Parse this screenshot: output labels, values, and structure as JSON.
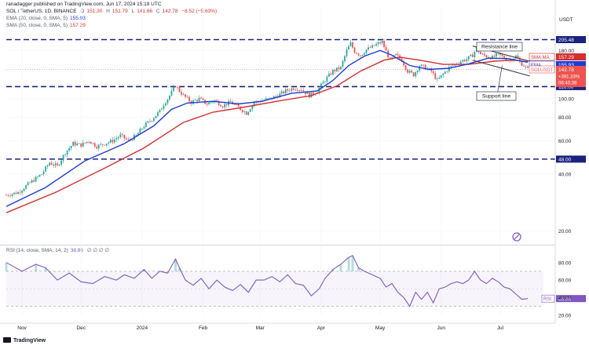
{
  "author": "ranadagger published on TradingView.com, Jun 17, 2024 15:19 UTC",
  "header": {
    "pair": "SOL / TetherUS, 1D, BINANCE",
    "ohlc": [
      {
        "label": "O",
        "value": "151.30"
      },
      {
        "label": "H",
        "value": "151.79"
      },
      {
        "label": "L",
        "value": "141.66"
      },
      {
        "label": "C",
        "value": "142.78"
      }
    ],
    "change": "−8.52 (−5.63%)",
    "ema_line": "EMA (20, close, 0, SMA, 5)",
    "ema_value": "155.93",
    "sma_line": "SMA (50, close, 0, SMA, 5)",
    "sma_value": "157.29",
    "rsi_line": "RSI (14, close, SMA, 14, 2)",
    "rsi_value": "38.86",
    "rsi_na": "∅ ∅ ∅ ∅"
  },
  "currency": "USDT",
  "footer": "TradingView",
  "colors": {
    "up": "#26a69a",
    "down": "#ef5350",
    "ema": "#1e3ad8",
    "sma": "#d32f2f",
    "rsi": "#7e57c2",
    "level": "#1a237e",
    "channel": "#333a45"
  },
  "chart_data": [
    {
      "type": "candlestick",
      "title": "SOL / TetherUS, 1D, BINANCE",
      "y_scale": "log",
      "ylim": [
        19,
        236
      ],
      "y_ticks": [
        "20.00",
        "40.00",
        "60.00",
        "80.00",
        "100.00",
        "120.00",
        "140.00",
        "180.00"
      ],
      "x_ticks": [
        "Nov",
        "Dec",
        "2024",
        "Feb",
        "Mar",
        "Apr",
        "May",
        "Jun",
        "Jul"
      ],
      "series": [
        {
          "name": "EMA",
          "value": "155.93"
        },
        {
          "name": "SMA:MA",
          "value": "157.29"
        },
        {
          "name": "SOLUSDT",
          "value": "142.78",
          "extra": [
            "+391.33%",
            "08:40:38"
          ]
        }
      ],
      "price_path": [
        [
          0,
          31
        ],
        [
          6,
          32
        ],
        [
          12,
          36
        ],
        [
          18,
          40
        ],
        [
          22,
          46
        ],
        [
          26,
          44
        ],
        [
          30,
          52
        ],
        [
          34,
          58
        ],
        [
          38,
          57
        ],
        [
          42,
          60
        ],
        [
          46,
          56
        ],
        [
          50,
          58
        ],
        [
          54,
          60
        ],
        [
          58,
          64
        ],
        [
          62,
          60
        ],
        [
          66,
          64
        ],
        [
          70,
          72
        ],
        [
          74,
          78
        ],
        [
          78,
          86
        ],
        [
          80,
          94
        ],
        [
          82,
          100
        ],
        [
          84,
          108
        ],
        [
          86,
          118
        ],
        [
          88,
          110
        ],
        [
          90,
          104
        ],
        [
          94,
          96
        ],
        [
          98,
          100
        ],
        [
          102,
          94
        ],
        [
          106,
          98
        ],
        [
          110,
          92
        ],
        [
          114,
          96
        ],
        [
          118,
          90
        ],
        [
          122,
          84
        ],
        [
          126,
          96
        ],
        [
          130,
          98
        ],
        [
          134,
          100
        ],
        [
          138,
          104
        ],
        [
          142,
          110
        ],
        [
          146,
          114
        ],
        [
          150,
          112
        ],
        [
          154,
          104
        ],
        [
          158,
          110
        ],
        [
          162,
          126
        ],
        [
          166,
          140
        ],
        [
          170,
          146
        ],
        [
          173,
          180
        ],
        [
          175,
          196
        ],
        [
          177,
          178
        ],
        [
          180,
          170
        ],
        [
          183,
          182
        ],
        [
          186,
          188
        ],
        [
          189,
          196
        ],
        [
          191,
          200
        ],
        [
          193,
          178
        ],
        [
          195,
          160
        ],
        [
          198,
          170
        ],
        [
          201,
          160
        ],
        [
          204,
          140
        ],
        [
          207,
          134
        ],
        [
          210,
          150
        ],
        [
          213,
          146
        ],
        [
          216,
          140
        ],
        [
          219,
          125
        ],
        [
          222,
          135
        ],
        [
          225,
          146
        ],
        [
          228,
          152
        ],
        [
          231,
          158
        ],
        [
          234,
          162
        ],
        [
          237,
          170
        ],
        [
          239,
          186
        ],
        [
          241,
          172
        ],
        [
          244,
          168
        ],
        [
          247,
          165
        ],
        [
          250,
          172
        ],
        [
          253,
          164
        ],
        [
          256,
          160
        ],
        [
          259,
          168
        ],
        [
          261,
          156
        ],
        [
          263,
          150
        ],
        [
          265,
          143
        ]
      ],
      "ema_path": [
        [
          0,
          27
        ],
        [
          20,
          34
        ],
        [
          40,
          47
        ],
        [
          60,
          58
        ],
        [
          75,
          72
        ],
        [
          84,
          88
        ],
        [
          92,
          95
        ],
        [
          105,
          97
        ],
        [
          118,
          94
        ],
        [
          130,
          97
        ],
        [
          145,
          107
        ],
        [
          158,
          110
        ],
        [
          166,
          125
        ],
        [
          174,
          150
        ],
        [
          182,
          168
        ],
        [
          190,
          180
        ],
        [
          196,
          170
        ],
        [
          205,
          150
        ],
        [
          215,
          143
        ],
        [
          225,
          145
        ],
        [
          235,
          153
        ],
        [
          245,
          164
        ],
        [
          255,
          163
        ],
        [
          265,
          156
        ]
      ],
      "sma_path": [
        [
          0,
          25
        ],
        [
          25,
          32
        ],
        [
          50,
          43
        ],
        [
          70,
          55
        ],
        [
          90,
          75
        ],
        [
          105,
          85
        ],
        [
          120,
          90
        ],
        [
          140,
          98
        ],
        [
          155,
          104
        ],
        [
          168,
          117
        ],
        [
          180,
          140
        ],
        [
          192,
          160
        ],
        [
          200,
          166
        ],
        [
          210,
          160
        ],
        [
          222,
          152
        ],
        [
          235,
          152
        ],
        [
          248,
          158
        ],
        [
          258,
          160
        ],
        [
          265,
          157
        ]
      ],
      "levels": [
        {
          "value": 205.48,
          "label": "205.48"
        },
        {
          "value": 116.0,
          "label": "116.00"
        },
        {
          "value": 48.0,
          "label": "48.00"
        }
      ],
      "annotations": [
        {
          "text": "Resistance line"
        },
        {
          "text": "Support line"
        }
      ],
      "resistance_channel": [
        [
          237,
          190
        ],
        [
          266,
          158
        ]
      ],
      "support_channel": [
        [
          237,
          160
        ],
        [
          266,
          132
        ]
      ]
    },
    {
      "type": "line",
      "name": "RSI",
      "ylim": [
        18,
        95
      ],
      "y_ticks": [
        "20.00",
        "40.00",
        "60.00",
        "80.00"
      ],
      "bands": [
        30,
        70
      ],
      "last_value": "38.86",
      "rsi_path": [
        [
          0,
          80
        ],
        [
          8,
          70
        ],
        [
          15,
          78
        ],
        [
          20,
          74
        ],
        [
          26,
          60
        ],
        [
          32,
          68
        ],
        [
          38,
          58
        ],
        [
          44,
          56
        ],
        [
          50,
          64
        ],
        [
          56,
          60
        ],
        [
          60,
          66
        ],
        [
          65,
          62
        ],
        [
          70,
          72
        ],
        [
          74,
          62
        ],
        [
          78,
          70
        ],
        [
          82,
          68
        ],
        [
          86,
          84
        ],
        [
          88,
          74
        ],
        [
          91,
          60
        ],
        [
          95,
          54
        ],
        [
          99,
          62
        ],
        [
          103,
          50
        ],
        [
          107,
          60
        ],
        [
          111,
          52
        ],
        [
          115,
          48
        ],
        [
          119,
          55
        ],
        [
          123,
          46
        ],
        [
          127,
          60
        ],
        [
          131,
          60
        ],
        [
          135,
          64
        ],
        [
          139,
          58
        ],
        [
          143,
          66
        ],
        [
          147,
          56
        ],
        [
          151,
          54
        ],
        [
          155,
          42
        ],
        [
          159,
          50
        ],
        [
          162,
          62
        ],
        [
          166,
          72
        ],
        [
          170,
          78
        ],
        [
          174,
          86
        ],
        [
          176,
          88
        ],
        [
          179,
          74
        ],
        [
          182,
          70
        ],
        [
          186,
          66
        ],
        [
          190,
          62
        ],
        [
          193,
          52
        ],
        [
          196,
          56
        ],
        [
          199,
          46
        ],
        [
          202,
          40
        ],
        [
          205,
          30
        ],
        [
          208,
          46
        ],
        [
          211,
          38
        ],
        [
          214,
          46
        ],
        [
          217,
          34
        ],
        [
          220,
          50
        ],
        [
          223,
          52
        ],
        [
          226,
          56
        ],
        [
          229,
          58
        ],
        [
          232,
          56
        ],
        [
          235,
          60
        ],
        [
          238,
          70
        ],
        [
          241,
          60
        ],
        [
          244,
          56
        ],
        [
          247,
          62
        ],
        [
          250,
          58
        ],
        [
          253,
          52
        ],
        [
          256,
          50
        ],
        [
          259,
          44
        ],
        [
          262,
          38
        ],
        [
          265,
          38.86
        ]
      ]
    }
  ]
}
